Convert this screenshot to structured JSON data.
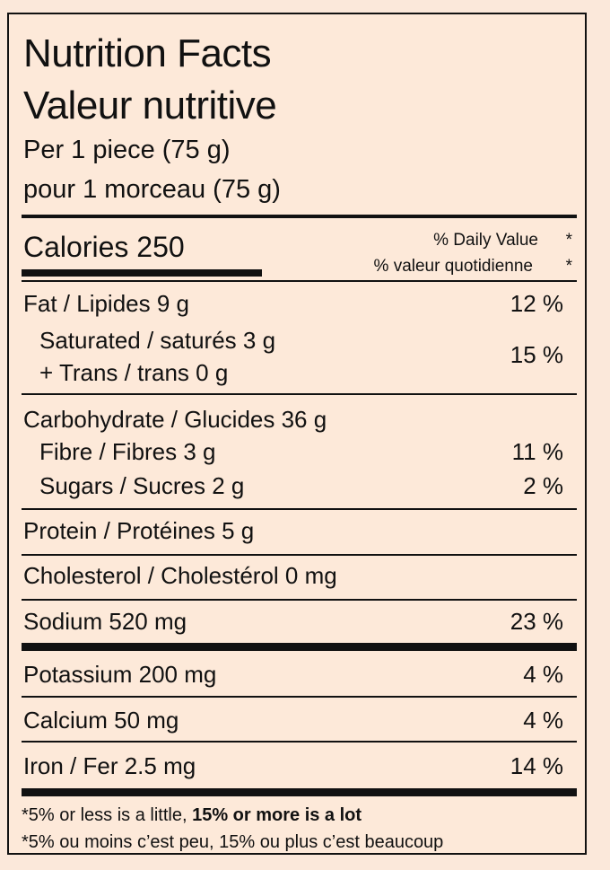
{
  "title_en": "Nutrition Facts",
  "title_fr": "Valeur nutritive",
  "serving_en": "Per 1 piece (75 g)",
  "serving_fr": "pour 1 morceau (75 g)",
  "calories": "Calories 250",
  "dv_en": "% Daily Value",
  "dv_fr": "% valeur quotidienne",
  "asterisk": "*",
  "nutrients": {
    "fat": {
      "label": "Fat / Lipides 9 g",
      "dv": "12 %"
    },
    "saturated": {
      "label": "Saturated / saturés 3 g"
    },
    "trans": {
      "label": "+ Trans / trans 0 g"
    },
    "sat_trans_dv": "15 %",
    "carbohydrate": {
      "label": "Carbohydrate / Glucides 36 g"
    },
    "fibre": {
      "label": "Fibre / Fibres 3 g",
      "dv": "11 %"
    },
    "sugars": {
      "label": "Sugars / Sucres 2 g",
      "dv": "2 %"
    },
    "protein": {
      "label": "Protein / Protéines 5 g"
    },
    "cholesterol": {
      "label": "Cholesterol / Cholestérol 0 mg"
    },
    "sodium": {
      "label": "Sodium 520 mg",
      "dv": "23 %"
    },
    "potassium": {
      "label": "Potassium 200 mg",
      "dv": "4 %"
    },
    "calcium": {
      "label": "Calcium 50 mg",
      "dv": "4 %"
    },
    "iron": {
      "label": "Iron / Fer 2.5 mg",
      "dv": "14 %"
    }
  },
  "footnote_en": {
    "star": "*",
    "part1": "5% or less is  a little, ",
    "part2": "15% or more is a lot"
  },
  "footnote_fr": {
    "star": "*",
    "text": "5% ou moins c’est peu, 15% ou plus c’est beaucoup"
  },
  "colors": {
    "background": "#fde9d9",
    "ink": "#111111"
  }
}
